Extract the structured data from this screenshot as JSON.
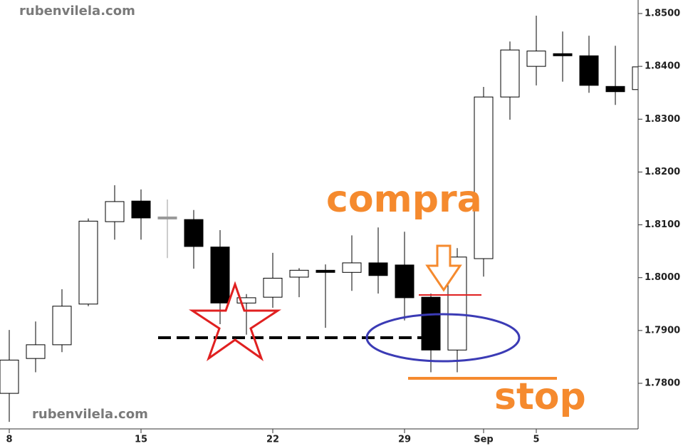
{
  "chart_data": {
    "type": "candlestick",
    "categories": [
      "8",
      null,
      null,
      null,
      null,
      "15",
      null,
      null,
      null,
      null,
      "22",
      null,
      null,
      null,
      null,
      "29",
      null,
      null,
      "Sep",
      null,
      "5",
      null,
      null,
      null,
      null
    ],
    "open": [
      1.7781,
      1.7847,
      1.7873,
      1.795,
      1.8106,
      1.8145,
      1.8113,
      1.811,
      1.8058,
      1.7952,
      1.7963,
      1.8001,
      1.8014,
      1.801,
      1.8028,
      1.8024,
      1.7963,
      1.7863,
      1.8036,
      1.8342,
      1.84,
      1.8422,
      1.842,
      1.8362,
      1.8356
    ],
    "high": [
      1.7901,
      1.7917,
      1.7978,
      1.8112,
      1.8175,
      1.8167,
      1.8148,
      1.8128,
      1.809,
      1.7969,
      1.8047,
      1.8018,
      1.8025,
      1.808,
      1.8095,
      1.8087,
      1.797,
      1.8056,
      1.8361,
      1.8447,
      1.8496,
      1.8466,
      1.8458,
      1.8439,
      1.8399
    ],
    "low": [
      1.7727,
      1.7821,
      1.7859,
      1.7946,
      1.8072,
      1.8072,
      1.8037,
      1.8017,
      1.7912,
      1.7892,
      1.7943,
      1.7963,
      1.7905,
      1.7975,
      1.797,
      1.7919,
      1.7821,
      1.7821,
      1.8002,
      1.8299,
      1.8364,
      1.8371,
      1.835,
      1.8327,
      1.8356
    ],
    "close": [
      1.7844,
      1.7873,
      1.7946,
      1.8107,
      1.8144,
      1.8113,
      1.8113,
      1.8059,
      1.7952,
      1.7962,
      1.7999,
      1.8014,
      1.801,
      1.8028,
      1.8004,
      1.7962,
      1.7863,
      1.8039,
      1.8342,
      1.8431,
      1.8429,
      1.8422,
      1.8364,
      1.8352,
      1.8399
    ],
    "colors": [
      "#ffffff",
      "#ffffff",
      "#ffffff",
      "#ffffff",
      "#ffffff",
      "#000000",
      "#999999",
      "#000000",
      "#000000",
      "#ffffff",
      "#ffffff",
      "#ffffff",
      "#000000",
      "#ffffff",
      "#000000",
      "#000000",
      "#000000",
      "#ffffff",
      "#ffffff",
      "#ffffff",
      "#ffffff",
      "#000000",
      "#000000",
      "#000000",
      "#ffffff"
    ],
    "ylim": [
      1.77137,
      1.85256
    ],
    "yticks": [
      {
        "value": 1.78,
        "label": "1.7800"
      },
      {
        "value": 1.79,
        "label": "1.7900"
      },
      {
        "value": 1.8,
        "label": "1.8000"
      },
      {
        "value": 1.81,
        "label": "1.8100"
      },
      {
        "value": 1.82,
        "label": "1.8200"
      },
      {
        "value": 1.83,
        "label": "1.8300"
      },
      {
        "value": 1.84,
        "label": "1.8400"
      },
      {
        "value": 1.85,
        "label": "1.8500"
      }
    ],
    "annotations": [
      "rubenvilela.com",
      "rubenvilela.com",
      "compra",
      "stop"
    ]
  }
}
